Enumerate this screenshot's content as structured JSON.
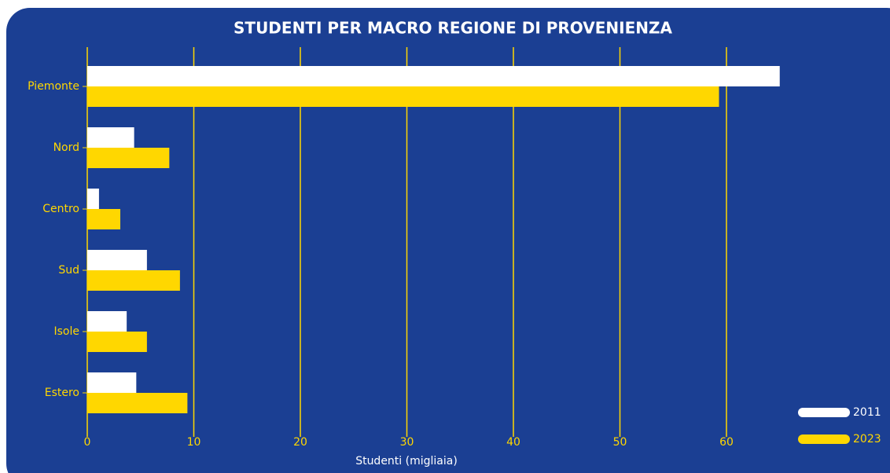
{
  "chart_data": {
    "type": "barh",
    "title": "STUDENTI PER MACRO REGIONE DI PROVENIENZA",
    "categories": [
      "Piemonte",
      "Nord",
      "Centro",
      "Sud",
      "Isole",
      "Estero"
    ],
    "series": [
      {
        "name": "2011",
        "color": "#ffffff",
        "values": [
          65.0,
          4.4,
          1.1,
          5.6,
          3.7,
          4.6
        ]
      },
      {
        "name": "2023",
        "color": "#ffd700",
        "values": [
          59.3,
          7.7,
          3.1,
          8.7,
          5.6,
          9.4
        ]
      }
    ],
    "xlabel": "Studenti (migliaia)",
    "xlim": [
      0,
      70
    ],
    "xticks": [
      0,
      10,
      20,
      30,
      40,
      50,
      60
    ],
    "grid": true,
    "legend": "lower right"
  }
}
